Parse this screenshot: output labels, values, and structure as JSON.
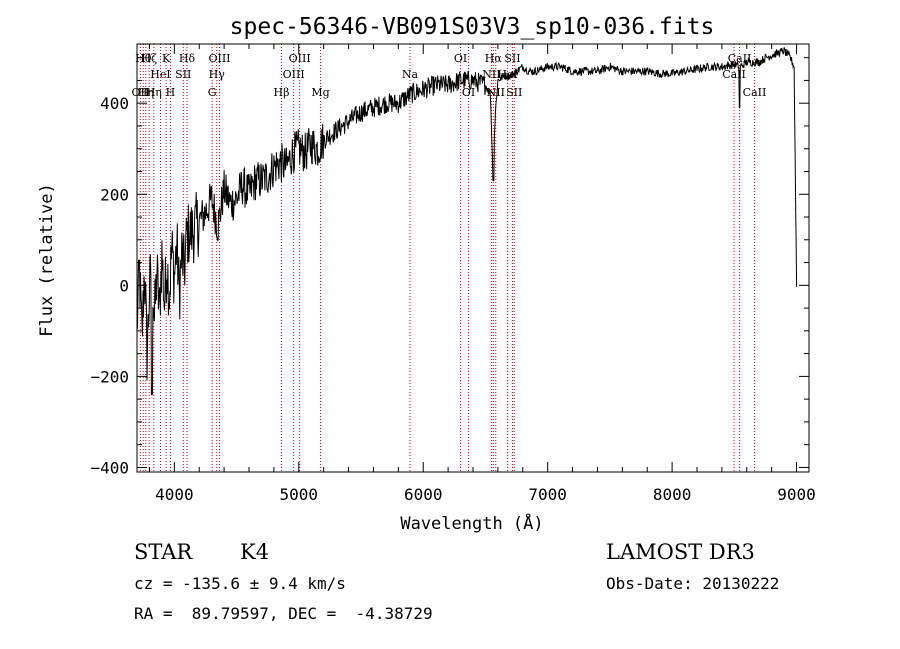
{
  "chart_data": {
    "type": "line",
    "title": "spec-56346-VB091S03V3_sp10-036.fits",
    "xlabel": "Wavelength (Å)",
    "ylabel": "Flux (relative)",
    "xlim": [
      3700,
      9100
    ],
    "ylim": [
      -410,
      530
    ],
    "x_ticks": [
      4000,
      5000,
      6000,
      7000,
      8000,
      9000
    ],
    "x_tick_labels": [
      "4000",
      "5000",
      "6000",
      "7000",
      "8000",
      "9000"
    ],
    "y_ticks": [
      -400,
      -200,
      0,
      200,
      400
    ],
    "y_tick_labels": [
      "-400",
      "-200",
      "0",
      "200",
      "400"
    ],
    "grid": false,
    "line_color": "#000000",
    "marker_color": "#cc0000",
    "series": [
      {
        "name": "flux",
        "x": [
          3700,
          3720,
          3740,
          3760,
          3780,
          3800,
          3820,
          3840,
          3860,
          3880,
          3900,
          3920,
          3940,
          3960,
          3980,
          4000,
          4020,
          4040,
          4060,
          4080,
          4100,
          4150,
          4200,
          4250,
          4300,
          4350,
          4400,
          4450,
          4500,
          4550,
          4600,
          4650,
          4700,
          4750,
          4800,
          4850,
          4900,
          4950,
          5000,
          5050,
          5100,
          5150,
          5200,
          5300,
          5400,
          5500,
          5600,
          5700,
          5800,
          5900,
          6000,
          6100,
          6200,
          6300,
          6400,
          6500,
          6540,
          6560,
          6580,
          6600,
          6650,
          6700,
          6750,
          6800,
          6850,
          6900,
          7000,
          7100,
          7200,
          7300,
          7400,
          7500,
          7600,
          7700,
          7800,
          7900,
          8000,
          8100,
          8200,
          8300,
          8400,
          8500,
          8550,
          8600,
          8650,
          8700,
          8750,
          8800,
          8850,
          8900,
          8950,
          8980,
          9000
        ],
        "y": [
          -90,
          30,
          -120,
          40,
          -150,
          -20,
          60,
          -80,
          30,
          -60,
          70,
          -40,
          50,
          -20,
          80,
          20,
          90,
          -20,
          70,
          30,
          110,
          120,
          140,
          160,
          190,
          130,
          210,
          180,
          190,
          220,
          200,
          230,
          230,
          240,
          260,
          270,
          260,
          290,
          300,
          290,
          310,
          300,
          320,
          340,
          360,
          380,
          390,
          400,
          400,
          420,
          430,
          440,
          440,
          450,
          450,
          440,
          420,
          250,
          380,
          450,
          460,
          460,
          470,
          480,
          470,
          470,
          480,
          480,
          470,
          470,
          470,
          480,
          470,
          470,
          470,
          465,
          465,
          470,
          475,
          480,
          480,
          485,
          480,
          490,
          490,
          490,
          500,
          505,
          510,
          515,
          500,
          480,
          0
        ]
      }
    ],
    "line_markers": [
      {
        "wavelength": 3727,
        "label": "OII",
        "row": 3
      },
      {
        "wavelength": 3750,
        "label": "Hθ",
        "row": 1
      },
      {
        "wavelength": 3771,
        "label": "Hη",
        "row": 3
      },
      {
        "wavelength": 3798,
        "label": "Hζ",
        "row": 1
      },
      {
        "wavelength": 3835,
        "label": "Hη",
        "row": 3
      },
      {
        "wavelength": 3889,
        "label": "HeI",
        "row": 2
      },
      {
        "wavelength": 3934,
        "label": "K",
        "row": 1
      },
      {
        "wavelength": 3969,
        "label": "H",
        "row": 3
      },
      {
        "wavelength": 4072,
        "label": "SII",
        "row": 2
      },
      {
        "wavelength": 4102,
        "label": "Hδ",
        "row": 1
      },
      {
        "wavelength": 4304,
        "label": "G",
        "row": 3
      },
      {
        "wavelength": 4341,
        "label": "Hγ",
        "row": 2
      },
      {
        "wavelength": 4363,
        "label": "OIII",
        "row": 1
      },
      {
        "wavelength": 4861,
        "label": "Hβ",
        "row": 3
      },
      {
        "wavelength": 4959,
        "label": "OIII",
        "row": 2
      },
      {
        "wavelength": 5007,
        "label": "OIII",
        "row": 1
      },
      {
        "wavelength": 5175,
        "label": "Mg",
        "row": 3
      },
      {
        "wavelength": 5894,
        "label": "Na",
        "row": 2
      },
      {
        "wavelength": 6300,
        "label": "OI",
        "row": 1
      },
      {
        "wavelength": 6364,
        "label": "OI",
        "row": 3
      },
      {
        "wavelength": 6548,
        "label": "NII",
        "row": 2
      },
      {
        "wavelength": 6563,
        "label": "Hα",
        "row": 1
      },
      {
        "wavelength": 6583,
        "label": "NII",
        "row": 3
      },
      {
        "wavelength": 6678,
        "label": "HeI",
        "row": 2
      },
      {
        "wavelength": 6717,
        "label": "SII",
        "row": 1
      },
      {
        "wavelength": 6731,
        "label": "SII",
        "row": 3
      },
      {
        "wavelength": 8498,
        "label": "CaII",
        "row": 2
      },
      {
        "wavelength": 8542,
        "label": "CaII",
        "row": 1
      },
      {
        "wavelength": 8662,
        "label": "CaII",
        "row": 3
      }
    ]
  },
  "info": {
    "object_class": "STAR",
    "subclass": "K4",
    "redshift": "cz = -135.6 ± 9.4 km/s",
    "coords": "RA =  89.79597, DEC =  -4.38729",
    "survey": "LAMOST DR3",
    "obs_date": "Obs-Date: 20130222"
  }
}
